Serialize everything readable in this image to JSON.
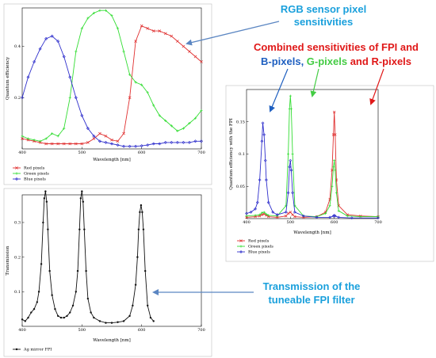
{
  "annotations": {
    "rgb_line1": "RGB sensor pixel",
    "rgb_line2": "sensitivities",
    "comb_line1": "Combined sensitivities of FPI and",
    "comb_b": "B-pixels",
    "comb_sep1": ", ",
    "comb_g": "G-pixels",
    "comb_and": " and ",
    "comb_r": "R-pixels",
    "trans_line1": "Transmission of the",
    "trans_line2": "tuneable FPI filter"
  },
  "colors": {
    "red": "#e03030",
    "green": "#33dd33",
    "blue": "#2f2fcc",
    "black": "#111111",
    "annotation_blue": "#1aa0dc",
    "annotation_red": "#e01818",
    "annotation_green": "#44cc44",
    "annotation_darkblue": "#1e5fc0",
    "arrow": "#5b86c2"
  },
  "chart_data": [
    {
      "type": "line",
      "xlabel": "Wavelength [nm]",
      "ylabel": "Quantum efficiency",
      "xlim": [
        400,
        700
      ],
      "ylim": [
        0,
        0.55
      ],
      "xticks": [
        "400",
        "500",
        "600",
        "700"
      ],
      "yticks": [
        {
          "v": 0.2,
          "t": "0.2"
        },
        {
          "v": 0.4,
          "t": "0.4"
        }
      ],
      "series": [
        {
          "name": "Red pixels",
          "color": "#e03030",
          "x": [
            400,
            410,
            420,
            430,
            440,
            450,
            460,
            470,
            480,
            490,
            500,
            510,
            520,
            530,
            540,
            550,
            560,
            570,
            580,
            590,
            600,
            610,
            620,
            630,
            640,
            650,
            660,
            670,
            680,
            690,
            700
          ],
          "y": [
            0.04,
            0.035,
            0.03,
            0.025,
            0.02,
            0.02,
            0.02,
            0.02,
            0.02,
            0.02,
            0.02,
            0.025,
            0.04,
            0.06,
            0.05,
            0.035,
            0.03,
            0.06,
            0.2,
            0.42,
            0.48,
            0.47,
            0.46,
            0.46,
            0.45,
            0.44,
            0.42,
            0.4,
            0.38,
            0.36,
            0.34
          ]
        },
        {
          "name": "Green pixels",
          "color": "#33dd33",
          "x": [
            400,
            410,
            420,
            430,
            440,
            450,
            460,
            470,
            480,
            490,
            500,
            510,
            520,
            530,
            540,
            550,
            560,
            570,
            580,
            590,
            600,
            610,
            620,
            630,
            640,
            650,
            660,
            670,
            680,
            690,
            700
          ],
          "y": [
            0.05,
            0.04,
            0.035,
            0.03,
            0.04,
            0.06,
            0.05,
            0.08,
            0.2,
            0.38,
            0.47,
            0.51,
            0.53,
            0.54,
            0.54,
            0.52,
            0.47,
            0.38,
            0.29,
            0.26,
            0.25,
            0.22,
            0.17,
            0.13,
            0.11,
            0.09,
            0.07,
            0.08,
            0.1,
            0.12,
            0.15
          ]
        },
        {
          "name": "Blue pixels",
          "color": "#2f2fcc",
          "x": [
            400,
            410,
            420,
            430,
            440,
            450,
            460,
            470,
            480,
            490,
            500,
            510,
            520,
            530,
            540,
            550,
            560,
            570,
            580,
            590,
            600,
            610,
            620,
            630,
            640,
            650,
            660,
            670,
            680,
            690,
            700
          ],
          "y": [
            0.2,
            0.28,
            0.34,
            0.39,
            0.43,
            0.44,
            0.42,
            0.36,
            0.28,
            0.2,
            0.13,
            0.08,
            0.05,
            0.03,
            0.025,
            0.02,
            0.015,
            0.01,
            0.01,
            0.01,
            0.012,
            0.015,
            0.02,
            0.02,
            0.025,
            0.025,
            0.025,
            0.025,
            0.025,
            0.03,
            0.03
          ]
        }
      ],
      "legend": "bottom-left"
    },
    {
      "type": "line",
      "xlabel": "Wavelength [nm]",
      "ylabel": "Quantum efficiency with the FPI",
      "xlim": [
        400,
        700
      ],
      "ylim": [
        0,
        0.2
      ],
      "xticks": [
        "400",
        "500",
        "600",
        "700"
      ],
      "yticks": [
        {
          "v": 0.05,
          "t": "0.05"
        },
        {
          "v": 0.1,
          "t": "0.1"
        },
        {
          "v": 0.15,
          "t": "0.15"
        }
      ],
      "series": [
        {
          "name": "Red pixels",
          "color": "#e03030",
          "x": [
            400,
            420,
            430,
            435,
            440,
            445,
            450,
            470,
            490,
            495,
            500,
            505,
            510,
            530,
            560,
            580,
            590,
            595,
            598,
            600,
            602,
            605,
            610,
            630,
            660,
            700
          ],
          "y": [
            0.002,
            0.003,
            0.004,
            0.006,
            0.007,
            0.005,
            0.003,
            0.002,
            0.004,
            0.008,
            0.01,
            0.006,
            0.003,
            0.002,
            0.003,
            0.01,
            0.03,
            0.075,
            0.13,
            0.165,
            0.13,
            0.06,
            0.02,
            0.006,
            0.004,
            0.003
          ]
        },
        {
          "name": "Green pixels",
          "color": "#33dd33",
          "x": [
            400,
            420,
            430,
            435,
            440,
            445,
            450,
            470,
            490,
            495,
            498,
            500,
            502,
            505,
            510,
            530,
            560,
            580,
            590,
            595,
            598,
            600,
            602,
            605,
            610,
            630,
            660,
            700
          ],
          "y": [
            0.004,
            0.005,
            0.006,
            0.009,
            0.01,
            0.007,
            0.005,
            0.004,
            0.02,
            0.1,
            0.17,
            0.19,
            0.17,
            0.1,
            0.02,
            0.004,
            0.003,
            0.008,
            0.02,
            0.05,
            0.08,
            0.09,
            0.075,
            0.04,
            0.012,
            0.004,
            0.003,
            0.003
          ]
        },
        {
          "name": "Blue pixels",
          "color": "#2f2fcc",
          "x": [
            400,
            410,
            420,
            425,
            430,
            435,
            437,
            440,
            443,
            445,
            450,
            460,
            470,
            490,
            495,
            498,
            500,
            502,
            505,
            510,
            530,
            560,
            590,
            598,
            600,
            602,
            610,
            640,
            700
          ],
          "y": [
            0.008,
            0.01,
            0.015,
            0.025,
            0.06,
            0.12,
            0.148,
            0.13,
            0.09,
            0.06,
            0.025,
            0.01,
            0.006,
            0.01,
            0.04,
            0.08,
            0.09,
            0.075,
            0.04,
            0.01,
            0.004,
            0.002,
            0.002,
            0.004,
            0.005,
            0.004,
            0.002,
            0.001,
            0.001
          ]
        }
      ],
      "legend": "bottom-left"
    },
    {
      "type": "line",
      "xlabel": "Wavelength [nm]",
      "ylabel": "Transmission",
      "xlim": [
        400,
        700
      ],
      "ylim": [
        0,
        0.38
      ],
      "xticks": [
        "400",
        "500",
        "600",
        "700"
      ],
      "yticks": [
        {
          "v": 0.1,
          "t": "0.1"
        },
        {
          "v": 0.2,
          "t": "0.2"
        },
        {
          "v": 0.3,
          "t": "0.3"
        }
      ],
      "series": [
        {
          "name": "Ag mirror FPI",
          "color": "#111111",
          "x": [
            400,
            405,
            410,
            415,
            420,
            425,
            428,
            432,
            435,
            437,
            439,
            441,
            443,
            446,
            450,
            455,
            460,
            465,
            470,
            475,
            480,
            485,
            490,
            493,
            496,
            498,
            500,
            502,
            504,
            507,
            510,
            515,
            520,
            530,
            540,
            550,
            560,
            570,
            580,
            585,
            590,
            593,
            595,
            597,
            599,
            601,
            603,
            606,
            610,
            615,
            620
          ],
          "y": [
            0.02,
            0.015,
            0.025,
            0.04,
            0.05,
            0.07,
            0.1,
            0.18,
            0.3,
            0.37,
            0.39,
            0.36,
            0.28,
            0.16,
            0.09,
            0.05,
            0.03,
            0.025,
            0.025,
            0.03,
            0.04,
            0.06,
            0.1,
            0.16,
            0.28,
            0.37,
            0.39,
            0.36,
            0.28,
            0.16,
            0.08,
            0.04,
            0.025,
            0.015,
            0.01,
            0.01,
            0.012,
            0.015,
            0.03,
            0.06,
            0.12,
            0.2,
            0.28,
            0.33,
            0.35,
            0.33,
            0.28,
            0.16,
            0.06,
            0.025,
            0.015
          ]
        }
      ],
      "legend": "bottom-left"
    }
  ]
}
